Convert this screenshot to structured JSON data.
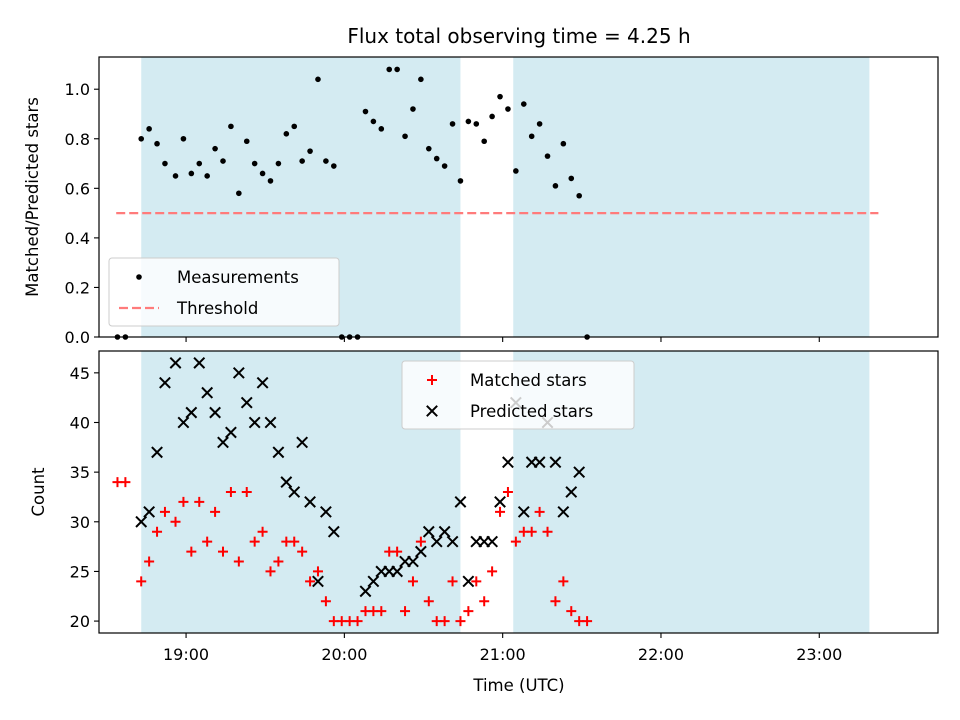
{
  "figure": {
    "title": "Flux total observing time = 4.25 h",
    "xlabel": "Time (UTC)"
  },
  "colors": {
    "band": "#add8e6",
    "measurements": "#000000",
    "threshold": "#ff7b7b",
    "matched": "#ff0000",
    "predicted": "#000000"
  },
  "chart_data": [
    {
      "type": "scatter",
      "ylabel": "Matched/Predicted stars",
      "xlim": [
        "18:27",
        "23:45"
      ],
      "ylim": [
        0,
        1.13
      ],
      "x_ticks": [
        "19:00",
        "20:00",
        "21:00",
        "22:00",
        "23:00"
      ],
      "y_ticks": [
        "0.0",
        "0.2",
        "0.4",
        "0.6",
        "0.8",
        "1.0"
      ],
      "y_tick_values": [
        0,
        0.2,
        0.4,
        0.6,
        0.8,
        1.0
      ],
      "observing_windows": [
        [
          "18:43",
          "20:44"
        ],
        [
          "21:04",
          "23:19"
        ]
      ],
      "legend": {
        "placement": "lower-left",
        "entries": [
          "Measurements",
          "Threshold"
        ]
      },
      "threshold": {
        "name": "Threshold",
        "value": 0.5,
        "x_range": [
          "18:43",
          "23:19"
        ]
      },
      "series": [
        {
          "name": "Measurements",
          "points": [
            [
              "18:34",
              0.0
            ],
            [
              "18:37",
              0.0
            ],
            [
              "18:43",
              0.8
            ],
            [
              "18:46",
              0.84
            ],
            [
              "18:49",
              0.78
            ],
            [
              "18:52",
              0.7
            ],
            [
              "18:56",
              0.65
            ],
            [
              "18:59",
              0.8
            ],
            [
              "19:02",
              0.66
            ],
            [
              "19:05",
              0.7
            ],
            [
              "19:08",
              0.65
            ],
            [
              "19:11",
              0.76
            ],
            [
              "19:14",
              0.71
            ],
            [
              "19:17",
              0.85
            ],
            [
              "19:20",
              0.58
            ],
            [
              "19:23",
              0.79
            ],
            [
              "19:26",
              0.7
            ],
            [
              "19:29",
              0.66
            ],
            [
              "19:32",
              0.63
            ],
            [
              "19:35",
              0.7
            ],
            [
              "19:38",
              0.82
            ],
            [
              "19:41",
              0.85
            ],
            [
              "19:44",
              0.71
            ],
            [
              "19:47",
              0.75
            ],
            [
              "19:50",
              1.04
            ],
            [
              "19:53",
              0.71
            ],
            [
              "19:56",
              0.69
            ],
            [
              "19:59",
              0.0
            ],
            [
              "20:02",
              0.0
            ],
            [
              "20:05",
              0.0
            ],
            [
              "20:08",
              0.91
            ],
            [
              "20:11",
              0.87
            ],
            [
              "20:14",
              0.84
            ],
            [
              "20:17",
              1.08
            ],
            [
              "20:20",
              1.08
            ],
            [
              "20:23",
              0.81
            ],
            [
              "20:26",
              0.92
            ],
            [
              "20:29",
              1.04
            ],
            [
              "20:32",
              0.76
            ],
            [
              "20:35",
              0.72
            ],
            [
              "20:38",
              0.69
            ],
            [
              "20:41",
              0.86
            ],
            [
              "20:44",
              0.63
            ],
            [
              "20:47",
              0.87
            ],
            [
              "20:50",
              0.86
            ],
            [
              "20:53",
              0.79
            ],
            [
              "20:56",
              0.89
            ],
            [
              "20:59",
              0.97
            ],
            [
              "21:02",
              0.92
            ],
            [
              "21:05",
              0.67
            ],
            [
              "21:08",
              0.94
            ],
            [
              "21:11",
              0.81
            ],
            [
              "21:14",
              0.86
            ],
            [
              "21:17",
              0.73
            ],
            [
              "21:20",
              0.61
            ],
            [
              "21:23",
              0.78
            ],
            [
              "21:26",
              0.64
            ],
            [
              "21:29",
              0.57
            ],
            [
              "21:32",
              0.0
            ]
          ]
        }
      ]
    },
    {
      "type": "scatter",
      "ylabel": "Count",
      "xlim": [
        "18:27",
        "23:45"
      ],
      "ylim": [
        18.8,
        47.2
      ],
      "x_ticks": [
        "19:00",
        "20:00",
        "21:00",
        "22:00",
        "23:00"
      ],
      "y_ticks": [
        "20",
        "25",
        "30",
        "35",
        "40",
        "45"
      ],
      "y_tick_values": [
        20,
        25,
        30,
        35,
        40,
        45
      ],
      "observing_windows": [
        [
          "18:43",
          "20:44"
        ],
        [
          "21:04",
          "23:19"
        ]
      ],
      "legend": {
        "placement": "upper-center",
        "entries": [
          "Matched stars",
          "Predicted stars"
        ]
      },
      "series": [
        {
          "name": "Matched stars",
          "points": [
            [
              "18:34",
              34
            ],
            [
              "18:37",
              34
            ],
            [
              "18:43",
              24
            ],
            [
              "18:46",
              26
            ],
            [
              "18:49",
              29
            ],
            [
              "18:52",
              31
            ],
            [
              "18:56",
              30
            ],
            [
              "18:59",
              32
            ],
            [
              "19:02",
              27
            ],
            [
              "19:05",
              32
            ],
            [
              "19:08",
              28
            ],
            [
              "19:11",
              31
            ],
            [
              "19:14",
              27
            ],
            [
              "19:17",
              33
            ],
            [
              "19:20",
              26
            ],
            [
              "19:23",
              33
            ],
            [
              "19:26",
              28
            ],
            [
              "19:29",
              29
            ],
            [
              "19:32",
              25
            ],
            [
              "19:35",
              26
            ],
            [
              "19:38",
              28
            ],
            [
              "19:41",
              28
            ],
            [
              "19:44",
              27
            ],
            [
              "19:47",
              24
            ],
            [
              "19:50",
              25
            ],
            [
              "19:53",
              22
            ],
            [
              "19:56",
              20
            ],
            [
              "19:59",
              20
            ],
            [
              "20:02",
              20
            ],
            [
              "20:05",
              20
            ],
            [
              "20:08",
              21
            ],
            [
              "20:11",
              21
            ],
            [
              "20:14",
              21
            ],
            [
              "20:17",
              27
            ],
            [
              "20:20",
              27
            ],
            [
              "20:23",
              21
            ],
            [
              "20:26",
              24
            ],
            [
              "20:29",
              28
            ],
            [
              "20:32",
              22
            ],
            [
              "20:35",
              20
            ],
            [
              "20:38",
              20
            ],
            [
              "20:41",
              24
            ],
            [
              "20:44",
              20
            ],
            [
              "20:47",
              21
            ],
            [
              "20:50",
              24
            ],
            [
              "20:53",
              22
            ],
            [
              "20:56",
              25
            ],
            [
              "20:59",
              31
            ],
            [
              "21:02",
              33
            ],
            [
              "21:05",
              28
            ],
            [
              "21:08",
              29
            ],
            [
              "21:11",
              29
            ],
            [
              "21:14",
              31
            ],
            [
              "21:17",
              29
            ],
            [
              "21:20",
              22
            ],
            [
              "21:23",
              24
            ],
            [
              "21:26",
              21
            ],
            [
              "21:29",
              20
            ],
            [
              "21:32",
              20
            ]
          ]
        },
        {
          "name": "Predicted stars",
          "points": [
            [
              "18:43",
              30
            ],
            [
              "18:46",
              31
            ],
            [
              "18:49",
              37
            ],
            [
              "18:52",
              44
            ],
            [
              "18:56",
              46
            ],
            [
              "18:59",
              40
            ],
            [
              "19:02",
              41
            ],
            [
              "19:05",
              46
            ],
            [
              "19:08",
              43
            ],
            [
              "19:11",
              41
            ],
            [
              "19:14",
              38
            ],
            [
              "19:17",
              39
            ],
            [
              "19:20",
              45
            ],
            [
              "19:23",
              42
            ],
            [
              "19:26",
              40
            ],
            [
              "19:29",
              44
            ],
            [
              "19:32",
              40
            ],
            [
              "19:35",
              37
            ],
            [
              "19:38",
              34
            ],
            [
              "19:41",
              33
            ],
            [
              "19:44",
              38
            ],
            [
              "19:47",
              32
            ],
            [
              "19:50",
              24
            ],
            [
              "19:53",
              31
            ],
            [
              "19:56",
              29
            ],
            [
              "20:08",
              23
            ],
            [
              "20:11",
              24
            ],
            [
              "20:14",
              25
            ],
            [
              "20:17",
              25
            ],
            [
              "20:20",
              25
            ],
            [
              "20:23",
              26
            ],
            [
              "20:26",
              26
            ],
            [
              "20:29",
              27
            ],
            [
              "20:32",
              29
            ],
            [
              "20:35",
              28
            ],
            [
              "20:38",
              29
            ],
            [
              "20:41",
              28
            ],
            [
              "20:44",
              32
            ],
            [
              "20:47",
              24
            ],
            [
              "20:50",
              28
            ],
            [
              "20:53",
              28
            ],
            [
              "20:56",
              28
            ],
            [
              "20:59",
              32
            ],
            [
              "21:02",
              36
            ],
            [
              "21:05",
              42
            ],
            [
              "21:08",
              31
            ],
            [
              "21:11",
              36
            ],
            [
              "21:14",
              36
            ],
            [
              "21:17",
              40
            ],
            [
              "21:20",
              36
            ],
            [
              "21:23",
              31
            ],
            [
              "21:26",
              33
            ],
            [
              "21:29",
              35
            ]
          ]
        }
      ]
    }
  ]
}
